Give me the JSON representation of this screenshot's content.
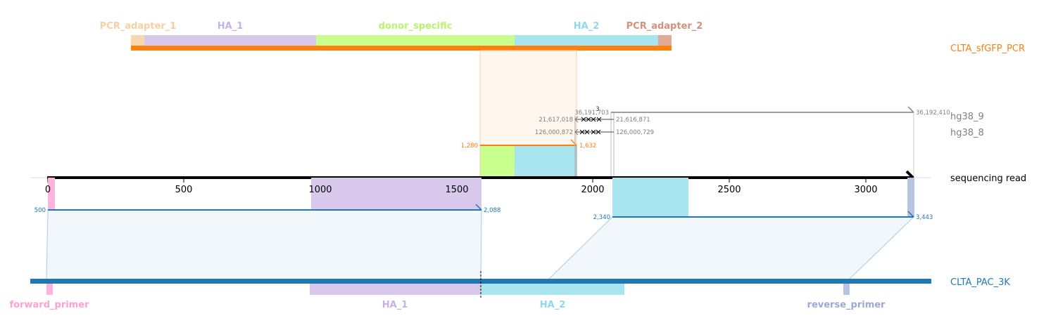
{
  "read": {
    "label": "sequencing read",
    "ticks": [
      "0",
      "500",
      "1000",
      "1500",
      "2000",
      "2500",
      "3000"
    ],
    "length": 3195
  },
  "top_ref": {
    "name": "CLTA_sfGFP_PCR",
    "color": "#ff7f0e",
    "features": [
      {
        "label": "PCR_adapter_1",
        "color": "#f7d7ae",
        "text_color": "#f8cfa0"
      },
      {
        "label": "HA_1",
        "color": "#d7c8ec",
        "text_color": "#c6b1e6"
      },
      {
        "label": "donor_specific",
        "color": "#c8ff8e",
        "text_color": "#b7f56a"
      },
      {
        "label": "HA_2",
        "color": "#a9e5ef",
        "text_color": "#8ed8ea"
      },
      {
        "label": "PCR_adapter_2",
        "color": "#e0ab97",
        "text_color": "#d4917a"
      }
    ],
    "alignment": {
      "start": "1,280",
      "end": "1,632"
    }
  },
  "hg38_9": {
    "name": "hg38_9",
    "color": "#808080",
    "labels": {
      "a": "36,191,703",
      "b": "36,192,410",
      "c": "21,617,018",
      "d": "21,616,871",
      "count": "3"
    }
  },
  "hg38_8": {
    "name": "hg38_8",
    "color": "#808080",
    "labels": {
      "a": "126,000,872",
      "b": "126,000,729"
    }
  },
  "bottom_ref": {
    "name": "CLTA_PAC_3K",
    "color": "#1f77b4",
    "features": [
      {
        "label": "forward_primer",
        "color": "#ffb3de",
        "text_color": "#ff9fd4"
      },
      {
        "label": "HA_1",
        "color": "#d7c8ec",
        "text_color": "#c6b1e6"
      },
      {
        "label": "HA_2",
        "color": "#a9e5ef",
        "text_color": "#8ed8ea"
      },
      {
        "label": "reverse_primer",
        "color": "#b7c4e0",
        "text_color": "#9aa9d4"
      }
    ],
    "alignments": [
      {
        "start": "500",
        "end": "2,088"
      },
      {
        "start": "2,340",
        "end": "3,443"
      }
    ]
  }
}
